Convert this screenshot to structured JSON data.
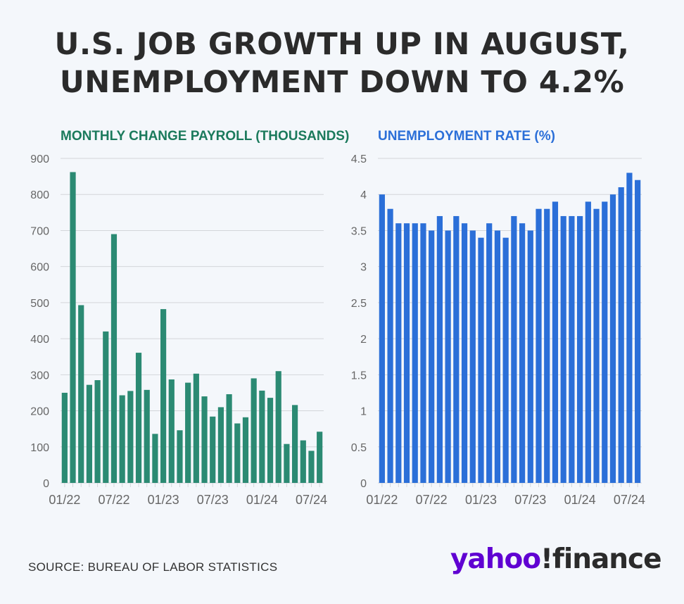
{
  "headline": {
    "line1": "U.S. JOB GROWTH UP IN AUGUST,",
    "line2": "UNEMPLOYMENT DOWN TO 4.2%"
  },
  "source": "SOURCE: BUREAU OF LABOR STATISTICS",
  "brand": {
    "yahoo": "yahoo",
    "finance": "!finance"
  },
  "colors": {
    "payroll_bar": "#2b8a73",
    "payroll_title": "#1b7a5c",
    "unemployment_bar": "#2b6fd8",
    "unemployment_title": "#2b6fd8",
    "grid": "#d3d6da",
    "axis_text": "#666666",
    "brand_purple": "#6001d2"
  },
  "chart_data": [
    {
      "type": "bar",
      "title": "MONTHLY CHANGE PAYROLL (THOUSANDS)",
      "ylim": [
        0,
        900
      ],
      "yticks": [
        "0",
        "100",
        "200",
        "300",
        "400",
        "500",
        "600",
        "700",
        "800",
        "900"
      ],
      "x_tick_labels": [
        "01/22",
        "07/22",
        "01/23",
        "07/23",
        "01/24",
        "07/24"
      ],
      "grid": true,
      "categories": [
        "01/22",
        "02/22",
        "03/22",
        "04/22",
        "05/22",
        "06/22",
        "07/22",
        "08/22",
        "09/22",
        "10/22",
        "11/22",
        "12/22",
        "01/23",
        "02/23",
        "03/23",
        "04/23",
        "05/23",
        "06/23",
        "07/23",
        "08/23",
        "09/23",
        "10/23",
        "11/23",
        "12/23",
        "01/24",
        "02/24",
        "03/24",
        "04/24",
        "05/24",
        "06/24",
        "07/24",
        "08/24"
      ],
      "values": [
        250,
        862,
        493,
        272,
        285,
        420,
        690,
        243,
        255,
        361,
        258,
        136,
        482,
        287,
        146,
        278,
        303,
        240,
        184,
        210,
        246,
        165,
        182,
        290,
        256,
        236,
        310,
        108,
        216,
        118,
        89,
        142
      ]
    },
    {
      "type": "bar",
      "title": "UNEMPLOYMENT RATE (%)",
      "ylim": [
        0,
        4.5
      ],
      "yticks": [
        "0",
        "0.5",
        "1",
        "1.5",
        "2",
        "2.5",
        "3",
        "3.5",
        "4",
        "4.5"
      ],
      "x_tick_labels": [
        "01/22",
        "07/22",
        "01/23",
        "07/23",
        "01/24",
        "07/24"
      ],
      "grid": true,
      "categories": [
        "01/22",
        "02/22",
        "03/22",
        "04/22",
        "05/22",
        "06/22",
        "07/22",
        "08/22",
        "09/22",
        "10/22",
        "11/22",
        "12/22",
        "01/23",
        "02/23",
        "03/23",
        "04/23",
        "05/23",
        "06/23",
        "07/23",
        "08/23",
        "09/23",
        "10/23",
        "11/23",
        "12/23",
        "01/24",
        "02/24",
        "03/24",
        "04/24",
        "05/24",
        "06/24",
        "07/24",
        "08/24"
      ],
      "values": [
        4.0,
        3.8,
        3.6,
        3.6,
        3.6,
        3.6,
        3.5,
        3.7,
        3.5,
        3.7,
        3.6,
        3.5,
        3.4,
        3.6,
        3.5,
        3.4,
        3.7,
        3.6,
        3.5,
        3.8,
        3.8,
        3.9,
        3.7,
        3.7,
        3.7,
        3.9,
        3.8,
        3.9,
        4.0,
        4.1,
        4.3,
        4.2
      ]
    }
  ]
}
